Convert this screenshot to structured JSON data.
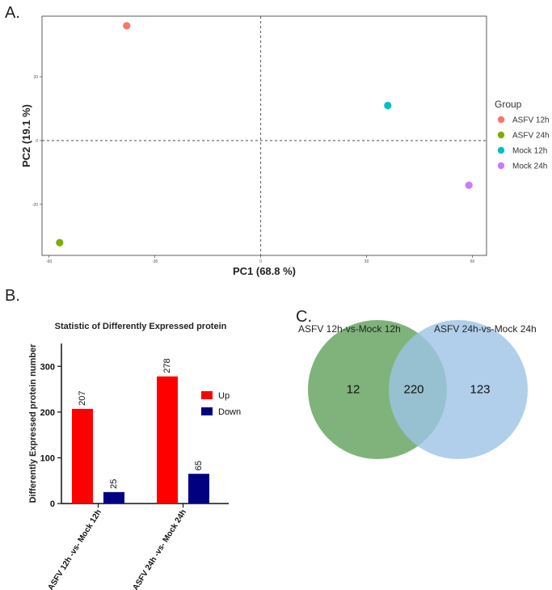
{
  "panels": {
    "a_label": "A.",
    "b_label": "B.",
    "c_label": "C."
  },
  "chart_data": [
    {
      "type": "scatter",
      "panel": "A",
      "title": "",
      "xlabel": "PC1 (68.8 %)",
      "ylabel": "PC2 (19.1 %)",
      "xlim": [
        -62,
        64
      ],
      "ylim": [
        -36,
        39
      ],
      "xticks": [
        -60,
        -30,
        0,
        30,
        60
      ],
      "xtick_labels": [
        "-60",
        "-30",
        "0",
        "30",
        "60"
      ],
      "yticks": [
        -20,
        0,
        20
      ],
      "ytick_labels": [
        "-20",
        "0",
        "20"
      ],
      "reference_lines": {
        "x": 0,
        "y": 0,
        "style": "dashed"
      },
      "legend_title": "Group",
      "legend_position": "right",
      "series": [
        {
          "name": "ASFV 12h",
          "color": "#F8766D",
          "x": [
            -38
          ],
          "y": [
            36
          ]
        },
        {
          "name": "ASFV 24h",
          "color": "#7CAE00",
          "x": [
            -57
          ],
          "y": [
            -32
          ]
        },
        {
          "name": "Mock 12h",
          "color": "#00BFC4",
          "x": [
            36
          ],
          "y": [
            11
          ]
        },
        {
          "name": "Mock 24h",
          "color": "#C77CFF",
          "x": [
            59
          ],
          "y": [
            -14
          ]
        }
      ]
    },
    {
      "type": "bar",
      "panel": "B",
      "title": "Statistic of Differently Expressed protein",
      "xlabel": "",
      "ylabel": "Differently Expressed protein number",
      "ylim": [
        0,
        350
      ],
      "yticks": [
        0,
        100,
        200,
        300
      ],
      "ytick_labels": [
        "0",
        "100",
        "200",
        "300"
      ],
      "categories": [
        "ASFV 12h -vs- Mock 12h",
        "ASFV 24h -vs- Mock 24h"
      ],
      "series": [
        {
          "name": "Up",
          "color": "#FF0000",
          "values": [
            207,
            278
          ],
          "labels": [
            "207",
            "278"
          ]
        },
        {
          "name": "Down",
          "color": "#000080",
          "values": [
            25,
            65
          ],
          "labels": [
            "25",
            "65"
          ]
        }
      ],
      "legend_position": "right"
    },
    {
      "type": "venn",
      "panel": "C",
      "sets": [
        {
          "name": "ASFV 12h-vs-Mock 12h",
          "color": "#5B9E56",
          "only": "12"
        },
        {
          "name": "ASFV 24h-vs-Mock 24h",
          "color": "#9DC3E6",
          "only": "123"
        }
      ],
      "intersection": "220"
    }
  ]
}
